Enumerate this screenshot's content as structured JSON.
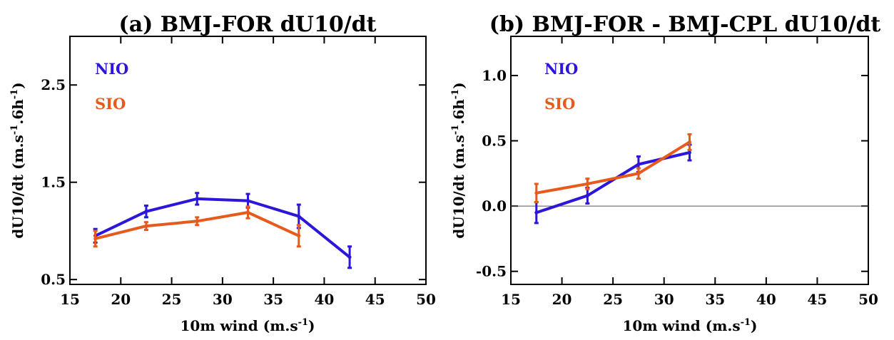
{
  "colors": {
    "NIO": "#2b16d9",
    "SIO": "#e85a1c",
    "axis": "#000000",
    "zero_line": "#555555"
  },
  "chart_data": [
    {
      "type": "line",
      "title": "(a) BMJ-FOR dU10/dt",
      "xlabel": "10m wind (m.s",
      "xlabel_sup": "-1",
      "xlabel_end": ")",
      "ylabel_parts": [
        "dU10/dt (m.s",
        "-1",
        ".6h",
        "-1",
        ")"
      ],
      "xlim": [
        15,
        50
      ],
      "ylim": [
        0.45,
        3.0
      ],
      "xticks": [
        15,
        20,
        25,
        30,
        35,
        40,
        45,
        50
      ],
      "xtick_labels": [
        "15",
        "20",
        "25",
        "30",
        "35",
        "40",
        "45",
        "50"
      ],
      "yticks": [
        0.5,
        1.5,
        2.5
      ],
      "ytick_labels": [
        "0.5",
        "1.5",
        "2.5"
      ],
      "grid": false,
      "legend_position": "top-left",
      "series": [
        {
          "name": "NIO",
          "x": [
            17.5,
            22.5,
            27.5,
            32.5,
            37.5,
            42.5
          ],
          "y": [
            0.95,
            1.2,
            1.33,
            1.31,
            1.15,
            0.73
          ],
          "err": [
            0.07,
            0.06,
            0.06,
            0.07,
            0.12,
            0.11
          ]
        },
        {
          "name": "SIO",
          "x": [
            17.5,
            22.5,
            27.5,
            32.5,
            37.5
          ],
          "y": [
            0.92,
            1.05,
            1.1,
            1.19,
            0.95
          ],
          "err": [
            0.08,
            0.04,
            0.04,
            0.06,
            0.11
          ]
        }
      ]
    },
    {
      "type": "line",
      "title": "(b) BMJ-FOR - BMJ-CPL dU10/dt",
      "xlabel": "10m wind (m.s",
      "xlabel_sup": "-1",
      "xlabel_end": ")",
      "ylabel_parts": [
        "dU10/dt (m.s",
        "-1",
        ".6h",
        "-1",
        ")"
      ],
      "xlim": [
        15,
        50
      ],
      "ylim": [
        -0.6,
        1.3
      ],
      "xticks": [
        15,
        20,
        25,
        30,
        35,
        40,
        45,
        50
      ],
      "xtick_labels": [
        "15",
        "20",
        "25",
        "30",
        "35",
        "40",
        "45",
        "50"
      ],
      "yticks": [
        -0.5,
        0.0,
        0.5,
        1.0
      ],
      "ytick_labels": [
        "-0.5",
        "0.0",
        "0.5",
        "1.0"
      ],
      "zero_line": true,
      "grid": false,
      "legend_position": "top-left",
      "series": [
        {
          "name": "NIO",
          "x": [
            17.5,
            22.5,
            27.5,
            32.5
          ],
          "y": [
            -0.05,
            0.08,
            0.32,
            0.41
          ],
          "err": [
            0.08,
            0.06,
            0.06,
            0.06
          ]
        },
        {
          "name": "SIO",
          "x": [
            17.5,
            22.5,
            27.5,
            32.5
          ],
          "y": [
            0.1,
            0.17,
            0.25,
            0.49
          ],
          "err": [
            0.07,
            0.04,
            0.04,
            0.06
          ]
        }
      ]
    }
  ]
}
